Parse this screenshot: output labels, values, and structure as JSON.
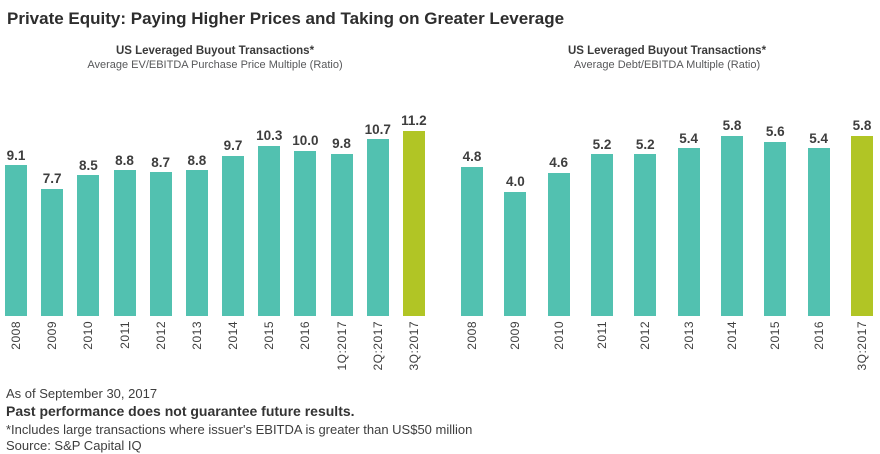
{
  "title": "Private Equity: Paying Higher Prices and Taking on Greater Leverage",
  "colors": {
    "bar_primary": "#52c1b0",
    "bar_highlight": "#b1c525",
    "title_text": "#2d2d2d",
    "label_text": "#3e3e3e",
    "subtitle_text": "#57585a"
  },
  "chart_data": [
    {
      "type": "bar",
      "title": "US Leveraged Buyout Transactions*",
      "subtitle": "Average EV/EBITDA Purchase Price Multiple (Ratio)",
      "categories": [
        "2008",
        "2009",
        "2010",
        "2011",
        "2012",
        "2013",
        "2014",
        "2015",
        "2016",
        "1Q:2017",
        "2Q:2017",
        "3Q:2017"
      ],
      "values": [
        9.1,
        7.7,
        8.5,
        8.8,
        8.7,
        8.8,
        9.7,
        10.3,
        10.0,
        9.8,
        10.7,
        11.2
      ],
      "highlight_last": true,
      "value_labels_shown": true,
      "ylim": [
        0,
        11.2
      ],
      "grid": false,
      "legend": false
    },
    {
      "type": "bar",
      "title": "US Leveraged Buyout Transactions*",
      "subtitle": "Average Debt/EBITDA Multiple (Ratio)",
      "categories": [
        "2008",
        "2009",
        "2010",
        "2011",
        "2012",
        "2013",
        "2014",
        "2015",
        "2016",
        "3Q:2017"
      ],
      "values": [
        4.8,
        4.0,
        4.6,
        5.2,
        5.2,
        5.4,
        5.8,
        5.6,
        5.4,
        5.8
      ],
      "highlight_last": true,
      "value_labels_shown": true,
      "ylim": [
        0,
        5.8
      ],
      "grid": false,
      "legend": false
    }
  ],
  "footer": {
    "as_of": "As of September 30, 2017",
    "disclaimer": "Past performance does not guarantee future results.",
    "footnote": "*Includes large transactions where issuer's EBITDA is greater than US$50 million",
    "source": "Source: S&P Capital IQ"
  }
}
